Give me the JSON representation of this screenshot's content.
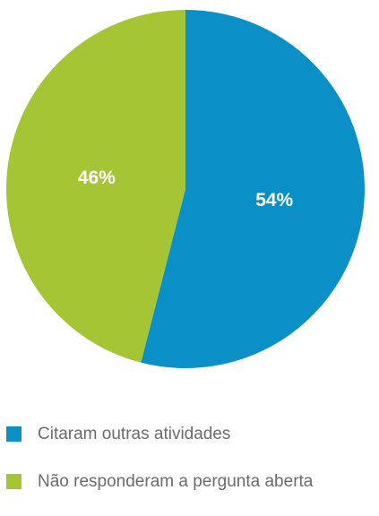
{
  "chart_data": {
    "type": "pie",
    "start_angle_deg": 0,
    "direction": "clockwise",
    "slices": [
      {
        "label": "Citaram outras atividades",
        "value": 54,
        "value_label": "54%",
        "color": "#0a8fc7"
      },
      {
        "label": "Não responderam a pergunta aberta",
        "value": 46,
        "value_label": "46%",
        "color": "#a5c535"
      }
    ]
  },
  "legend": {
    "items": [
      {
        "label": "Citaram outras atividades",
        "color": "#0a8fc7"
      },
      {
        "label": "Não responderam a pergunta aberta",
        "color": "#a5c535"
      }
    ]
  }
}
